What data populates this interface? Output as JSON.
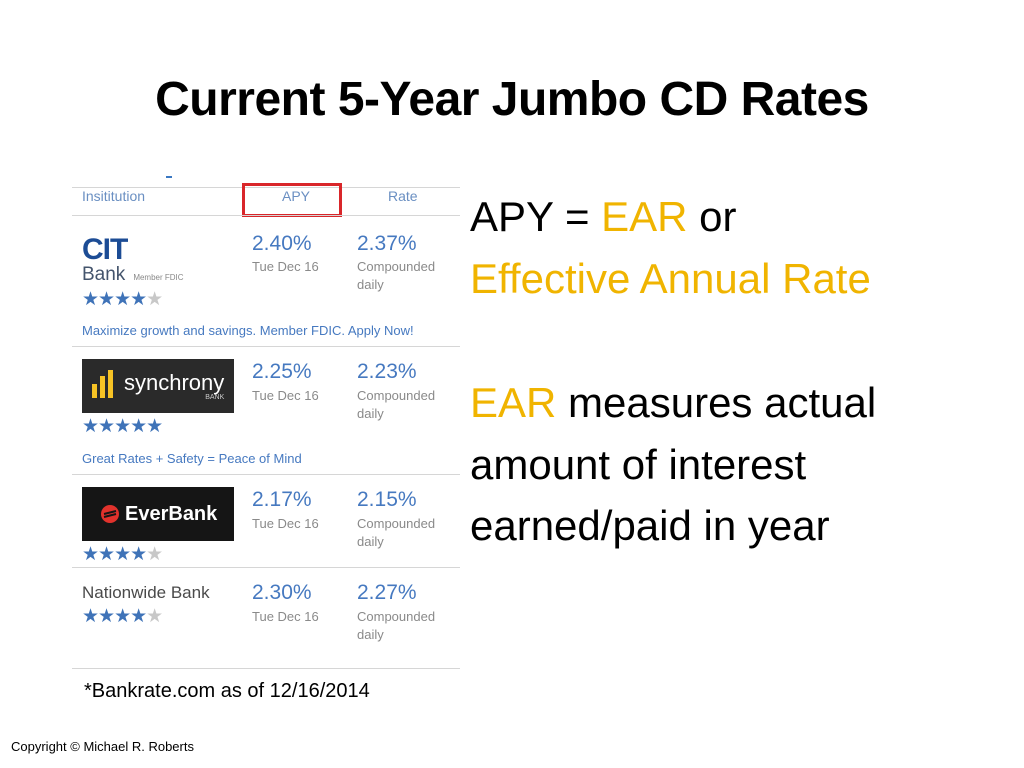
{
  "slide": {
    "title": "Current 5-Year Jumbo CD Rates",
    "footnote": "*Bankrate.com as of 12/16/2014",
    "copyright": "Copyright © Michael R. Roberts"
  },
  "table": {
    "headers": {
      "institution": "Insititution",
      "apy": "APY",
      "rate": "Rate"
    },
    "rows": [
      {
        "logo_text": "CIT",
        "logo_sub": "Bank",
        "logo_badge": "Member FDIC",
        "stars_on": "★★★★",
        "stars_off": "★",
        "apy": "2.40%",
        "apy_date": "Tue Dec 16",
        "rate": "2.37%",
        "rate_note_1": "Compounded",
        "rate_note_2": "daily",
        "promo": "Maximize growth and savings. Member FDIC. Apply Now!"
      },
      {
        "logo_text": "synchrony",
        "logo_sub": "BANK",
        "stars_on": "★★★★★",
        "stars_off": "",
        "apy": "2.25%",
        "apy_date": "Tue Dec 16",
        "rate": "2.23%",
        "rate_note_1": "Compounded",
        "rate_note_2": "daily",
        "promo": "Great Rates + Safety = Peace of Mind"
      },
      {
        "logo_text": "EverBank",
        "stars_on": "★★★★",
        "stars_off": "★",
        "apy": "2.17%",
        "apy_date": "Tue Dec 16",
        "rate": "2.15%",
        "rate_note_1": "Compounded",
        "rate_note_2": "daily"
      },
      {
        "logo_text": "Nationwide Bank",
        "stars_on": "★★★★",
        "stars_off": "★",
        "apy": "2.30%",
        "apy_date": "Tue Dec 16",
        "rate": "2.27%",
        "rate_note_1": "Compounded",
        "rate_note_2": "daily"
      }
    ]
  },
  "right": {
    "line1_a": "APY = ",
    "line1_b": "EAR",
    "line1_c": " or",
    "line2": "Effective Annual Rate",
    "line3_a": "EAR",
    "line3_b": " measures actual",
    "line4": "amount of interest",
    "line5": "earned/paid in year"
  },
  "colors": {
    "accent_gold": "#f0b400",
    "link_blue": "#4679c0",
    "highlight_red": "#d9262a"
  }
}
